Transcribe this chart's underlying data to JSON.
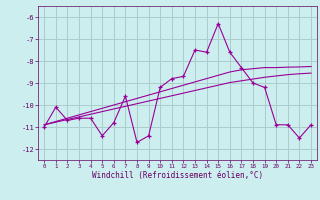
{
  "x": [
    0,
    1,
    2,
    3,
    4,
    5,
    6,
    7,
    8,
    9,
    10,
    11,
    12,
    13,
    14,
    15,
    16,
    17,
    18,
    19,
    20,
    21,
    22,
    23
  ],
  "y_main": [
    -11.0,
    -10.1,
    -10.7,
    -10.6,
    -10.6,
    -11.4,
    -10.8,
    -9.6,
    -11.7,
    -11.4,
    -9.2,
    -8.8,
    -8.7,
    -7.5,
    -7.6,
    -6.3,
    -7.6,
    -8.3,
    -9.0,
    -9.2,
    -10.9,
    -10.9,
    -11.5,
    -10.9
  ],
  "y_trend1": [
    -10.9,
    -10.75,
    -10.6,
    -10.45,
    -10.3,
    -10.15,
    -10.0,
    -9.85,
    -9.7,
    -9.55,
    -9.4,
    -9.25,
    -9.1,
    -8.95,
    -8.8,
    -8.65,
    -8.5,
    -8.4,
    -8.35,
    -8.3,
    -8.3,
    -8.28,
    -8.27,
    -8.25
  ],
  "y_trend2": [
    -10.9,
    -10.78,
    -10.66,
    -10.54,
    -10.42,
    -10.3,
    -10.18,
    -10.06,
    -9.94,
    -9.82,
    -9.7,
    -9.58,
    -9.46,
    -9.34,
    -9.22,
    -9.1,
    -8.98,
    -8.9,
    -8.82,
    -8.74,
    -8.68,
    -8.62,
    -8.58,
    -8.55
  ],
  "line_color": "#990099",
  "bg_color": "#cceeee",
  "grid_color": "#aacccc",
  "text_color": "#660066",
  "ylim": [
    -12.5,
    -5.5
  ],
  "yticks": [
    -12,
    -11,
    -10,
    -9,
    -8,
    -7,
    -6
  ],
  "xlabel": "Windchill (Refroidissement éolien,°C)"
}
